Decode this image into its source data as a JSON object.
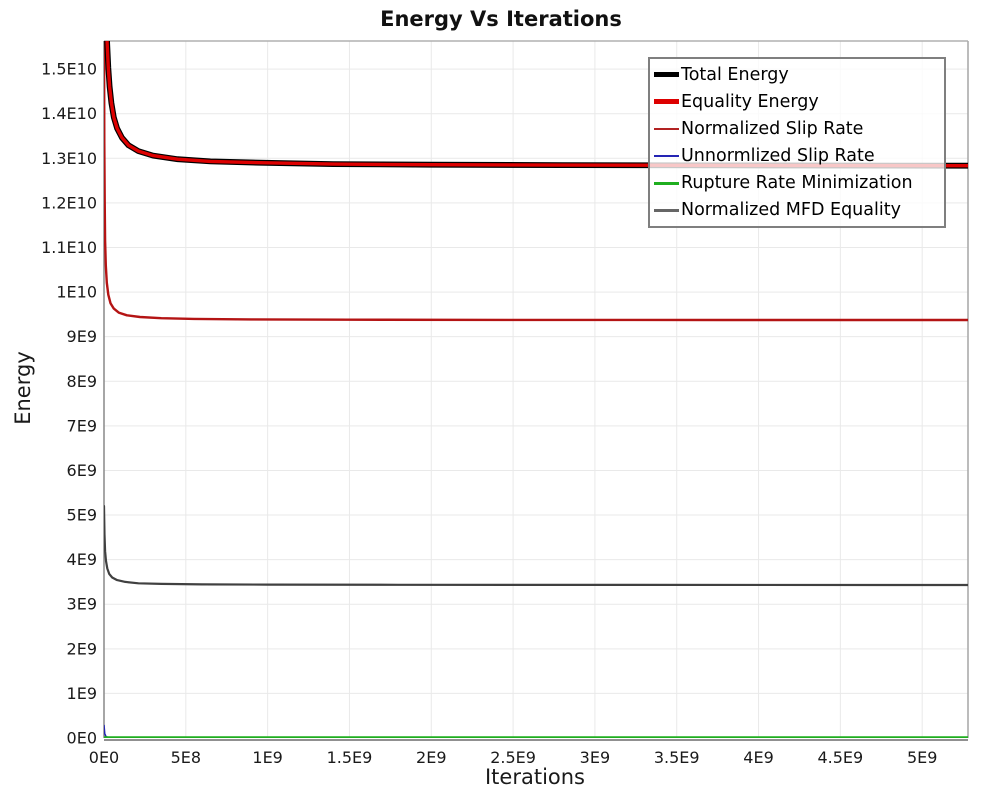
{
  "title": "Energy Vs Iterations",
  "axes": {
    "x_label": "Iterations",
    "y_label": "Energy"
  },
  "legend": {
    "items": [
      {
        "label": "Total Energy",
        "color": "#000000",
        "thick": true
      },
      {
        "label": "Equality Energy",
        "color": "#dd0000",
        "thick": true
      },
      {
        "label": "Normalized Slip Rate",
        "color": "#b22222",
        "thick": false
      },
      {
        "label": "Unnormlized Slip Rate",
        "color": "#2424b4",
        "thick": false
      },
      {
        "label": "Rupture Rate Minimization",
        "color": "#1fae1f",
        "thick": false
      },
      {
        "label": "Normalized MFD Equality",
        "color": "#666666",
        "thick": false
      }
    ]
  },
  "colors": {
    "grid": "#e9e9e9",
    "spine_top": "#b0b0b0",
    "spine_right": "#ababab",
    "spine_left": "#8f8f8f",
    "spine_bottom": "#6b6b6b",
    "background": "#ffffff"
  },
  "chart_data": {
    "type": "line",
    "title": "Energy Vs Iterations",
    "xlabel": "Iterations",
    "ylabel": "Energy",
    "grid": true,
    "legend_position": "upper right",
    "axis_unit": 1000000000.0,
    "xlim": [
      0,
      5.28
    ],
    "ylim": [
      0,
      15.63
    ],
    "x_ticks": [
      {
        "value": 0,
        "label": "0E0"
      },
      {
        "value": 0.5,
        "label": "5E8"
      },
      {
        "value": 1,
        "label": "1E9"
      },
      {
        "value": 1.5,
        "label": "1.5E9"
      },
      {
        "value": 2,
        "label": "2E9"
      },
      {
        "value": 2.5,
        "label": "2.5E9"
      },
      {
        "value": 3,
        "label": "3E9"
      },
      {
        "value": 3.5,
        "label": "3.5E9"
      },
      {
        "value": 4,
        "label": "4E9"
      },
      {
        "value": 4.5,
        "label": "4.5E9"
      },
      {
        "value": 5,
        "label": "5E9"
      }
    ],
    "y_ticks": [
      {
        "value": 0,
        "label": "0E0"
      },
      {
        "value": 1,
        "label": "1E9"
      },
      {
        "value": 2,
        "label": "2E9"
      },
      {
        "value": 3,
        "label": "3E9"
      },
      {
        "value": 4,
        "label": "4E9"
      },
      {
        "value": 5,
        "label": "5E9"
      },
      {
        "value": 6,
        "label": "6E9"
      },
      {
        "value": 7,
        "label": "7E9"
      },
      {
        "value": 8,
        "label": "8E9"
      },
      {
        "value": 9,
        "label": "9E9"
      },
      {
        "value": 10,
        "label": "1E10"
      },
      {
        "value": 11,
        "label": "1.1E10"
      },
      {
        "value": 12,
        "label": "1.2E10"
      },
      {
        "value": 13,
        "label": "1.3E10"
      },
      {
        "value": 14,
        "label": "1.4E10"
      },
      {
        "value": 15,
        "label": "1.5E10"
      }
    ],
    "series": [
      {
        "name": "Unnormlized Slip Rate",
        "color": "#2424b4",
        "width": 1.6,
        "points": [
          [
            0,
            0.28
          ],
          [
            0.004,
            0.1
          ],
          [
            0.012,
            0.03
          ],
          [
            0.03,
            0.008
          ],
          [
            5.28,
            0.008
          ]
        ]
      },
      {
        "name": "Rupture Rate Minimization",
        "color": "#1fae1f",
        "width": 2,
        "points": [
          [
            0,
            0.018
          ],
          [
            5.28,
            0.018
          ]
        ]
      },
      {
        "name": "Normalized MFD Equality",
        "color": "#404040",
        "width": 2.2,
        "points": [
          [
            0,
            5.2
          ],
          [
            0.003,
            4.56
          ],
          [
            0.007,
            4.19
          ],
          [
            0.012,
            3.97
          ],
          [
            0.02,
            3.8
          ],
          [
            0.032,
            3.68
          ],
          [
            0.05,
            3.6
          ],
          [
            0.08,
            3.54
          ],
          [
            0.13,
            3.5
          ],
          [
            0.21,
            3.47
          ],
          [
            0.35,
            3.456
          ],
          [
            0.6,
            3.445
          ],
          [
            1.0,
            3.439
          ],
          [
            1.8,
            3.435
          ],
          [
            3.0,
            3.433
          ],
          [
            5.28,
            3.432
          ]
        ]
      },
      {
        "name": "Normalized Slip Rate",
        "color": "#b41414",
        "width": 2.4,
        "points": [
          [
            0.0003,
            16.3
          ],
          [
            0.002,
            13.37
          ],
          [
            0.004,
            12.04
          ],
          [
            0.007,
            11.15
          ],
          [
            0.011,
            10.6
          ],
          [
            0.017,
            10.21
          ],
          [
            0.026,
            9.94
          ],
          [
            0.04,
            9.75
          ],
          [
            0.06,
            9.63
          ],
          [
            0.09,
            9.54
          ],
          [
            0.14,
            9.48
          ],
          [
            0.22,
            9.44
          ],
          [
            0.35,
            9.415
          ],
          [
            0.55,
            9.399
          ],
          [
            0.9,
            9.388
          ],
          [
            1.5,
            9.381
          ],
          [
            2.5,
            9.376
          ],
          [
            3.8,
            9.374
          ],
          [
            5.28,
            9.373
          ]
        ]
      },
      {
        "name": "Total Energy",
        "color": "#000000",
        "width": 5.8,
        "points": [
          [
            0.0005,
            21.0
          ],
          [
            0.005,
            18.6
          ],
          [
            0.012,
            16.57
          ],
          [
            0.019,
            15.6
          ],
          [
            0.026,
            15.03
          ],
          [
            0.034,
            14.61
          ],
          [
            0.045,
            14.24
          ],
          [
            0.06,
            13.92
          ],
          [
            0.08,
            13.67
          ],
          [
            0.11,
            13.46
          ],
          [
            0.15,
            13.29
          ],
          [
            0.21,
            13.16
          ],
          [
            0.3,
            13.06
          ],
          [
            0.45,
            12.98
          ],
          [
            0.65,
            12.93
          ],
          [
            0.95,
            12.9
          ],
          [
            1.4,
            12.87
          ],
          [
            2.0,
            12.857
          ],
          [
            2.8,
            12.847
          ],
          [
            3.8,
            12.84
          ],
          [
            5.28,
            12.834
          ]
        ]
      },
      {
        "name": "Equality Energy",
        "color": "#dd0000",
        "width": 3.4,
        "points": [
          [
            0.0005,
            21.0
          ],
          [
            0.005,
            18.6
          ],
          [
            0.012,
            16.57
          ],
          [
            0.019,
            15.6
          ],
          [
            0.026,
            15.03
          ],
          [
            0.034,
            14.61
          ],
          [
            0.045,
            14.24
          ],
          [
            0.06,
            13.92
          ],
          [
            0.08,
            13.67
          ],
          [
            0.11,
            13.46
          ],
          [
            0.15,
            13.29
          ],
          [
            0.21,
            13.16
          ],
          [
            0.3,
            13.06
          ],
          [
            0.45,
            12.98
          ],
          [
            0.65,
            12.93
          ],
          [
            0.95,
            12.9
          ],
          [
            1.4,
            12.87
          ],
          [
            2.0,
            12.857
          ],
          [
            2.8,
            12.847
          ],
          [
            3.8,
            12.84
          ],
          [
            5.28,
            12.834
          ]
        ]
      }
    ]
  }
}
